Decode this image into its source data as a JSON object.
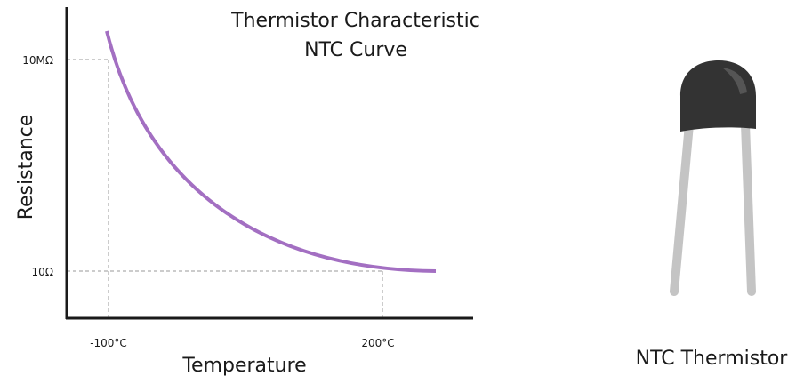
{
  "title": {
    "line1": "Thermistor Characteristic",
    "line2": "NTC Curve"
  },
  "graph": {
    "y_label": "Resistance",
    "x_label": "Temperature",
    "y_ticks": [
      "10MΩ",
      "10Ω"
    ],
    "x_ticks": [
      "-100°C",
      "200°C"
    ]
  },
  "component": {
    "caption": "NTC Thermistor"
  }
}
